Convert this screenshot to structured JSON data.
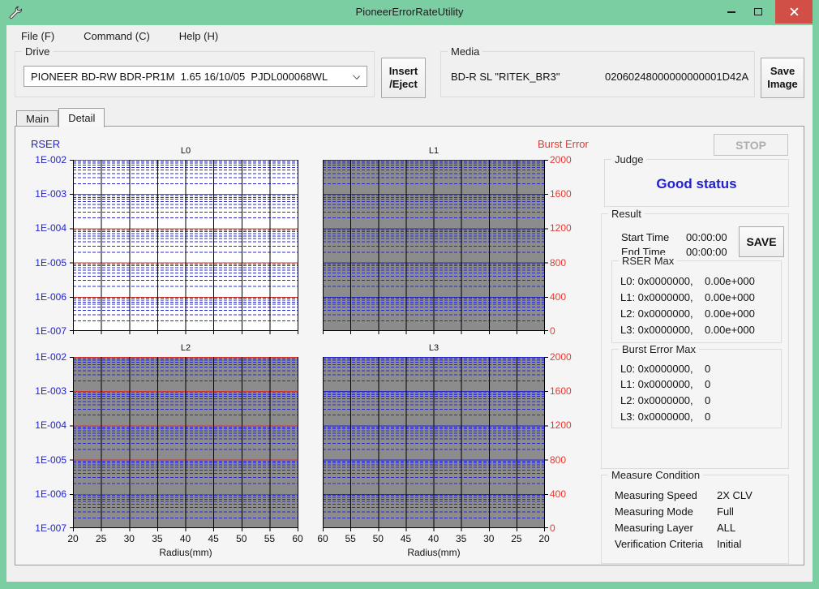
{
  "window": {
    "title": "PioneerErrorRateUtility",
    "icon": "wrench-icon",
    "colors": {
      "titlebar": "#7bcda2",
      "close_button": "#d24f47",
      "client_bg": "#f0f0f0"
    }
  },
  "menu": {
    "items": [
      "File (F)",
      "Command (C)",
      "Help (H)"
    ]
  },
  "drive": {
    "label": "Drive",
    "selected": "PIONEER BD-RW BDR-PR1M  1.65 16/10/05  PJDL000068WL",
    "insert_eject_line1": "Insert",
    "insert_eject_line2": "/Eject"
  },
  "media": {
    "label": "Media",
    "type": "BD-R SL \"RITEK_BR3\"",
    "id": "02060248000000000001D42A",
    "save_image_line1": "Save",
    "save_image_line2": "Image"
  },
  "tabs": {
    "items": [
      "Main",
      "Detail"
    ],
    "active": "Detail"
  },
  "chart_data": {
    "type": "line",
    "title": "",
    "ylabel_left": "RSER",
    "ylabel_right": "Burst Error",
    "y_scale": "log",
    "y_ticks_left": [
      "1E-002",
      "1E-003",
      "1E-004",
      "1E-005",
      "1E-006",
      "1E-007"
    ],
    "y_ticks_right": [
      "2000",
      "1600",
      "1200",
      "800",
      "400",
      "0"
    ],
    "y_range_left": [
      "1E-007",
      "1E-002"
    ],
    "y_range_right": [
      0,
      2000
    ],
    "xlabel": "Radius(mm)",
    "grid": true,
    "colors": {
      "minor_line": "#2a2ac8",
      "vertical_line": "#000000",
      "rser_label": "#2222cc",
      "burst_label": "#e8382e"
    },
    "subplots": [
      {
        "title": "L0",
        "bg": "#ffffff",
        "decade_line_color": "#d43530",
        "x_ticks": [
          20,
          25,
          30,
          35,
          40,
          45,
          50,
          55,
          60
        ],
        "x_tick_labels_visible": false,
        "series": []
      },
      {
        "title": "L1",
        "bg": "#8c8c8c",
        "decade_line_color": "#2a2ac8",
        "x_ticks": [
          20,
          25,
          30,
          35,
          40,
          45,
          50,
          55,
          60
        ],
        "x_tick_labels_visible": false,
        "series": []
      },
      {
        "title": "L2",
        "bg": "#8c8c8c",
        "decade_line_color": "#d43530",
        "x_ticks": [
          20,
          25,
          30,
          35,
          40,
          45,
          50,
          55,
          60
        ],
        "x_tick_labels_visible": true,
        "series": []
      },
      {
        "title": "L3",
        "bg": "#8c8c8c",
        "decade_line_color": "#2a2ac8",
        "x_ticks": [
          60,
          55,
          50,
          45,
          40,
          35,
          30,
          25,
          20
        ],
        "x_tick_labels_visible": true,
        "series": []
      }
    ],
    "note": "no measured data plotted; grids only"
  },
  "stop_button": "STOP",
  "judge": {
    "label": "Judge",
    "status": "Good status"
  },
  "result": {
    "label": "Result",
    "start_time_label": "Start Time",
    "start_time": "00:00:00",
    "end_time_label": "End Time",
    "end_time": "00:00:00",
    "save_button": "SAVE",
    "rser_max": {
      "label": "RSER Max",
      "rows": [
        {
          "label": "L0: 0x0000000,",
          "value": "0.00e+000"
        },
        {
          "label": "L1: 0x0000000,",
          "value": "0.00e+000"
        },
        {
          "label": "L2: 0x0000000,",
          "value": "0.00e+000"
        },
        {
          "label": "L3: 0x0000000,",
          "value": "0.00e+000"
        }
      ]
    },
    "burst_error_max": {
      "label": "Burst Error Max",
      "rows": [
        {
          "label": "L0: 0x0000000,",
          "value": "0"
        },
        {
          "label": "L1: 0x0000000,",
          "value": "0"
        },
        {
          "label": "L2: 0x0000000,",
          "value": "0"
        },
        {
          "label": "L3: 0x0000000,",
          "value": "0"
        }
      ]
    }
  },
  "measure_condition": {
    "label": "Measure Condition",
    "rows": [
      {
        "label": "Measuring Speed",
        "value": "2X CLV"
      },
      {
        "label": "Measuring Mode",
        "value": "Full"
      },
      {
        "label": "Measuring Layer",
        "value": "ALL"
      },
      {
        "label": "Verification Criteria",
        "value": "Initial"
      }
    ]
  }
}
